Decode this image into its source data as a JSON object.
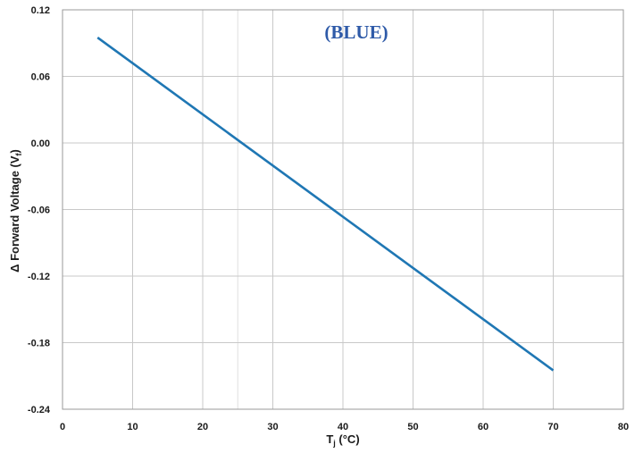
{
  "chart_data": {
    "type": "line",
    "title": "",
    "annotation": "(BLUE)",
    "xlabel": {
      "main": "T",
      "sub": "j",
      "rest": " (°C)"
    },
    "ylabel": {
      "main": "Δ Forward Voltage (V",
      "sub": "f",
      "rest": ")"
    },
    "xlim": [
      0,
      80
    ],
    "ylim": [
      -0.24,
      0.12
    ],
    "x_ticks": [
      0,
      10,
      20,
      30,
      40,
      50,
      60,
      70,
      80
    ],
    "x_tick_labels": [
      "0",
      "10",
      "20",
      "30",
      "40",
      "50",
      "60",
      "70",
      "80"
    ],
    "y_ticks": [
      0.12,
      0.06,
      0.0,
      -0.06,
      -0.12,
      -0.18,
      -0.24
    ],
    "y_tick_labels": [
      "0.12",
      "0.06",
      "0.00",
      "-0.06",
      "-0.12",
      "-0.18",
      "-0.24"
    ],
    "x_minor_gridlines": [
      25
    ],
    "grid": true,
    "legend": "none",
    "series": [
      {
        "color": "#1f77b4",
        "x": [
          5,
          70
        ],
        "y": [
          0.095,
          -0.205
        ]
      }
    ],
    "colors": {
      "line": "#1f77b4",
      "annotation": "#2e5aa8",
      "grid": "#c8c8c8",
      "minor_grid": "#e0e0e0"
    }
  }
}
